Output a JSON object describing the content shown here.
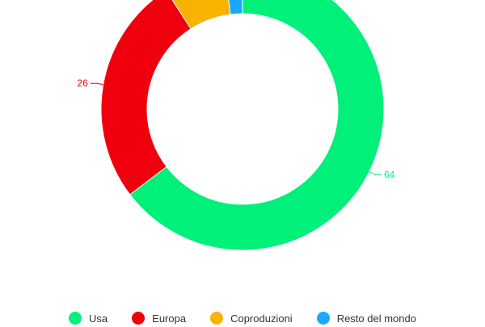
{
  "chart_data": {
    "type": "pie",
    "donut": true,
    "title": "",
    "categories": [
      "Usa",
      "Europa",
      "Coproduzioni",
      "Resto del mondo"
    ],
    "values": [
      64,
      26,
      7,
      2
    ],
    "data_labels": [
      "64",
      "26",
      "",
      ""
    ],
    "colors": [
      "#00f07a",
      "#f0000c",
      "#f7b300",
      "#1aa8ff"
    ],
    "legend_position": "bottom"
  }
}
